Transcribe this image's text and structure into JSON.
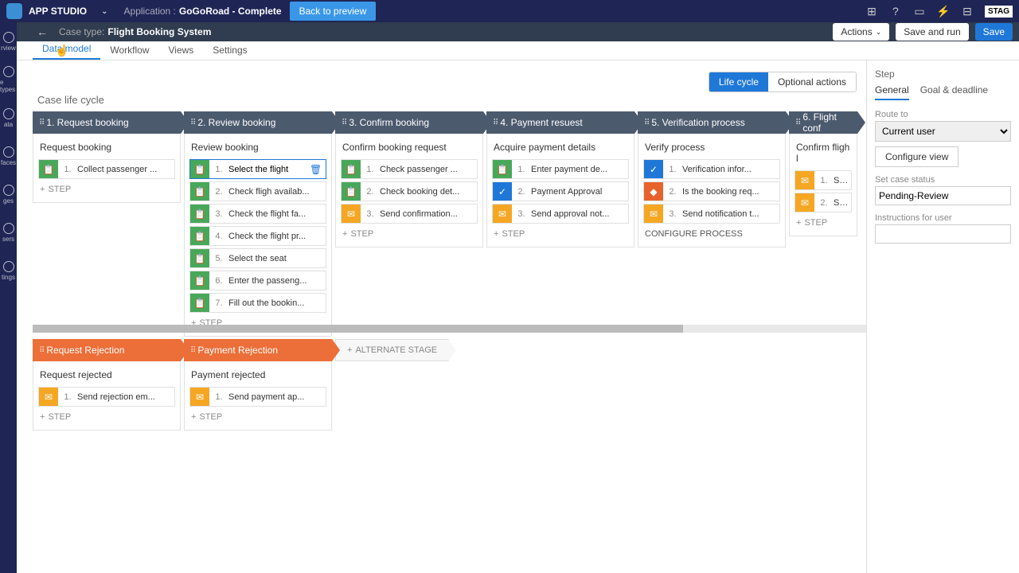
{
  "topbar": {
    "studio": "APP STUDIO",
    "app_label": "Application :",
    "app_name": "GoGoRoad - Complete",
    "back_to_preview": "Back to preview",
    "stage_badge": "STAG"
  },
  "subhead": {
    "case_type_label": "Case type:",
    "case_type_value": "Flight Booking System",
    "actions": "Actions",
    "save_run": "Save and run",
    "save": "Save"
  },
  "leftnav": [
    "rview",
    "e types",
    "ata",
    "faces",
    "ges",
    "sers",
    "tings"
  ],
  "tabs": [
    "Data model",
    "Workflow",
    "Views",
    "Settings"
  ],
  "toprow": {
    "life_cycle": "Life cycle",
    "optional": "Optional actions"
  },
  "case_life_cycle": "Case life cycle",
  "add_step": "STEP",
  "configure_process": "CONFIGURE PROCESS",
  "alternate": "ALTERNATE STAGE",
  "stages": [
    {
      "label": "1.   Request booking",
      "process": "Request booking",
      "steps": [
        {
          "ic": "clip",
          "n": "1.",
          "t": "Collect passenger ..."
        }
      ]
    },
    {
      "label": "2.   Review booking",
      "process": "Review booking",
      "steps": [
        {
          "ic": "clip",
          "n": "1.",
          "t": "Select the flight",
          "sel": true,
          "edit": true
        },
        {
          "ic": "clip",
          "n": "2.",
          "t": "Check fligh availab..."
        },
        {
          "ic": "clip",
          "n": "3.",
          "t": "Check the flight fa..."
        },
        {
          "ic": "clip",
          "n": "4.",
          "t": "Check the flight pr..."
        },
        {
          "ic": "clip",
          "n": "5.",
          "t": "Select the seat"
        },
        {
          "ic": "clip",
          "n": "6.",
          "t": "Enter the passeng..."
        },
        {
          "ic": "clip",
          "n": "7.",
          "t": "Fill out the bookin..."
        }
      ]
    },
    {
      "label": "3.   Confirm booking",
      "process": "Confirm booking request",
      "steps": [
        {
          "ic": "clip",
          "n": "1.",
          "t": "Check passenger ..."
        },
        {
          "ic": "clip",
          "n": "2.",
          "t": "Check booking det..."
        },
        {
          "ic": "mail",
          "n": "3.",
          "t": "Send confirmation..."
        }
      ]
    },
    {
      "label": "4.   Payment resuest",
      "process": "Acquire payment details",
      "steps": [
        {
          "ic": "clip",
          "n": "1.",
          "t": "Enter payment de..."
        },
        {
          "ic": "check",
          "n": "2.",
          "t": "Payment Approval"
        },
        {
          "ic": "mail",
          "n": "3.",
          "t": "Send approval not..."
        }
      ]
    },
    {
      "label": "5.   Verification process",
      "process": "Verify process",
      "cfg": true,
      "steps": [
        {
          "ic": "check",
          "n": "1.",
          "t": "Verification infor..."
        },
        {
          "ic": "dec",
          "n": "2.",
          "t": "Is the booking req..."
        },
        {
          "ic": "mail",
          "n": "3.",
          "t": "Send notification t..."
        }
      ]
    },
    {
      "label": "6.   Flight conf",
      "process": "Confirm fligh l",
      "steps": [
        {
          "ic": "mail",
          "n": "1.",
          "t": "Send"
        },
        {
          "ic": "mail",
          "n": "2.",
          "t": "Send"
        }
      ]
    }
  ],
  "alt_stages": [
    {
      "label": "Request Rejection",
      "process": "Request rejected",
      "steps": [
        {
          "ic": "mail",
          "n": "1.",
          "t": "Send rejection em..."
        }
      ]
    },
    {
      "label": "Payment Rejection",
      "process": "Payment rejected",
      "steps": [
        {
          "ic": "mail",
          "n": "1.",
          "t": "Send payment ap..."
        }
      ]
    }
  ],
  "rpanel": {
    "title": "Step",
    "tabs": [
      "General",
      "Goal & deadline"
    ],
    "route_label": "Route to",
    "route_value": "Current user",
    "configure_view": "Configure view",
    "status_label": "Set case status",
    "status_value": "Pending-Review",
    "instructions_label": "Instructions for user"
  }
}
